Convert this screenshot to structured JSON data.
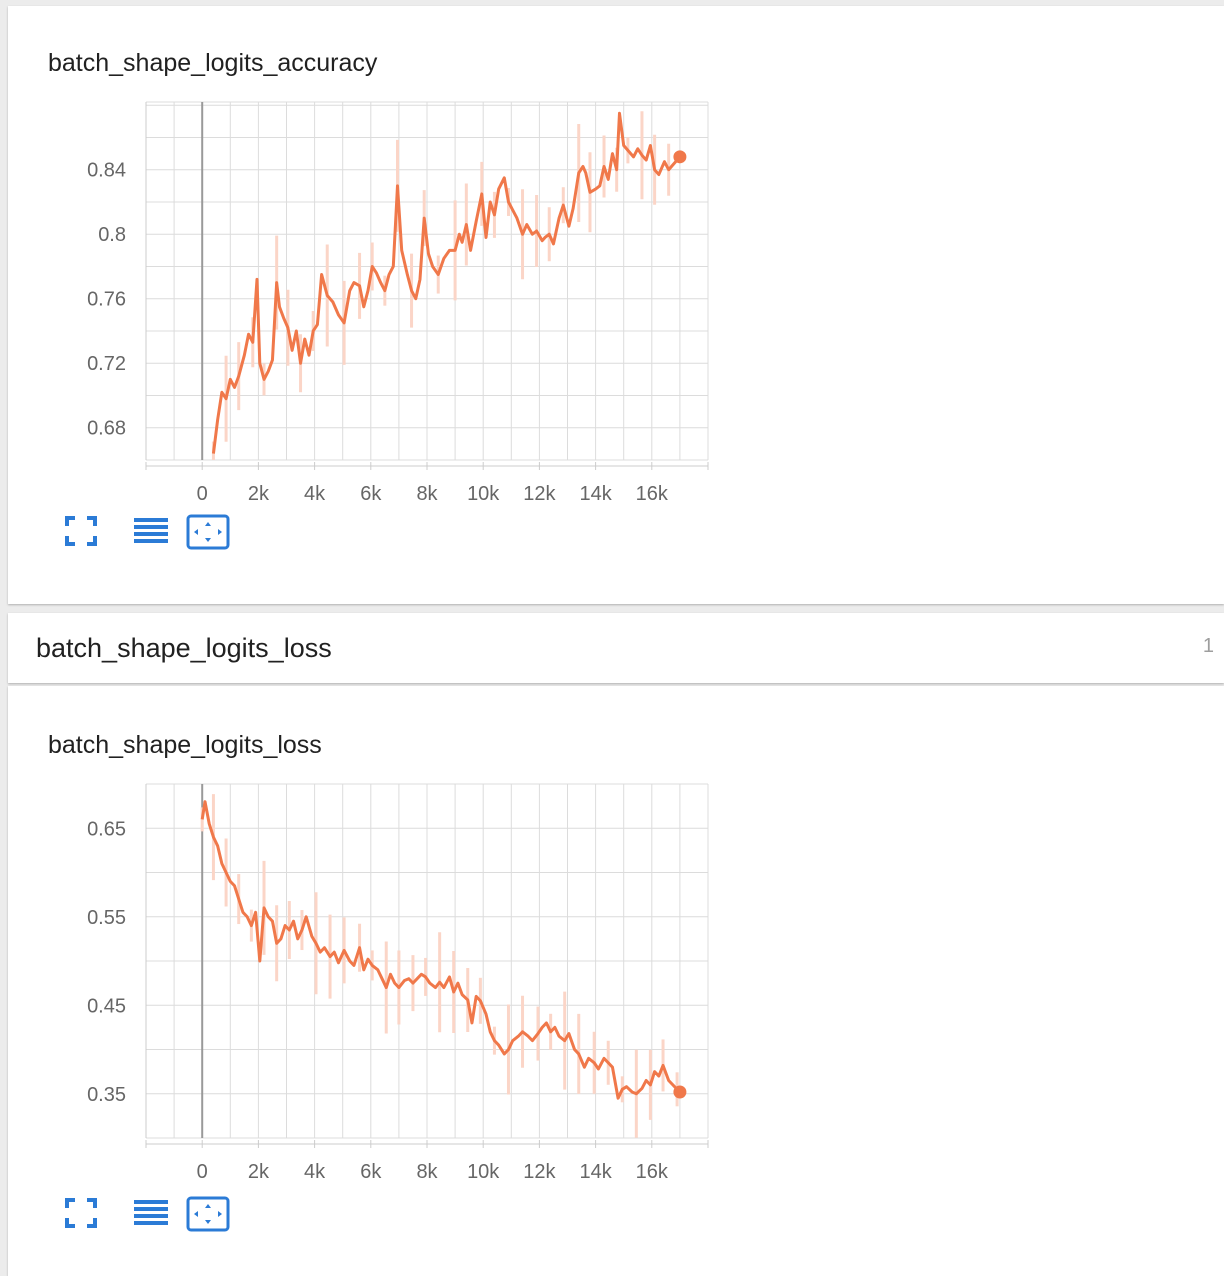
{
  "section": {
    "title": "batch_shape_logits_loss",
    "count": "1"
  },
  "charts": [
    {
      "id": "acc",
      "title": "batch_shape_logits_accuracy",
      "accent": "#f0784a",
      "raw_color": "#fbd5c7"
    },
    {
      "id": "loss",
      "title": "batch_shape_logits_loss",
      "accent": "#f0784a",
      "raw_color": "#fbd5c7"
    }
  ],
  "toolbar": [
    "fit-to-data-icon",
    "toggle-log-scale-icon",
    "expand-chart-icon"
  ],
  "chart_data": [
    {
      "type": "line",
      "title": "batch_shape_logits_accuracy",
      "xlabel": "",
      "ylabel": "",
      "xlim": [
        -2000,
        18000
      ],
      "ylim": [
        0.66,
        0.882
      ],
      "x_ticks": [
        0,
        2000,
        4000,
        6000,
        8000,
        10000,
        12000,
        14000,
        16000
      ],
      "x_tick_labels": [
        "0",
        "2k",
        "4k",
        "6k",
        "8k",
        "10k",
        "12k",
        "14k",
        "16k"
      ],
      "y_ticks": [
        0.68,
        0.72,
        0.76,
        0.8,
        0.84
      ],
      "y_tick_labels": [
        "0.68",
        "0.72",
        "0.76",
        "0.8",
        "0.84"
      ],
      "grid": true,
      "series": [
        {
          "x": [
            400,
            550,
            700,
            850,
            1000,
            1150,
            1300,
            1500,
            1650,
            1800,
            1950,
            2050,
            2200,
            2350,
            2500,
            2650,
            2750,
            2900,
            3050,
            3200,
            3350,
            3500,
            3650,
            3800,
            3950,
            4100,
            4250,
            4450,
            4650,
            4850,
            5050,
            5250,
            5400,
            5600,
            5750,
            5900,
            6050,
            6200,
            6350,
            6500,
            6650,
            6800,
            6950,
            7100,
            7300,
            7450,
            7600,
            7750,
            7900,
            8050,
            8200,
            8400,
            8600,
            8800,
            9000,
            9150,
            9250,
            9400,
            9550,
            9750,
            9950,
            10100,
            10250,
            10400,
            10550,
            10750,
            10900,
            11050,
            11200,
            11400,
            11550,
            11750,
            11900,
            12100,
            12200,
            12350,
            12500,
            12700,
            12850,
            13050,
            13200,
            13400,
            13550,
            13650,
            13800,
            14000,
            14150,
            14300,
            14450,
            14600,
            14750,
            14850,
            15000,
            15150,
            15350,
            15500,
            15650,
            15800,
            15950,
            16100,
            16250,
            16450,
            16600,
            16750,
            17000
          ],
          "y": [
            0.664,
            0.685,
            0.702,
            0.698,
            0.71,
            0.705,
            0.712,
            0.725,
            0.738,
            0.733,
            0.772,
            0.72,
            0.71,
            0.715,
            0.722,
            0.77,
            0.755,
            0.748,
            0.742,
            0.728,
            0.74,
            0.72,
            0.735,
            0.725,
            0.74,
            0.744,
            0.775,
            0.762,
            0.758,
            0.75,
            0.745,
            0.765,
            0.77,
            0.768,
            0.755,
            0.765,
            0.78,
            0.776,
            0.77,
            0.765,
            0.775,
            0.78,
            0.83,
            0.79,
            0.775,
            0.765,
            0.76,
            0.772,
            0.81,
            0.788,
            0.78,
            0.775,
            0.785,
            0.79,
            0.79,
            0.8,
            0.795,
            0.806,
            0.79,
            0.808,
            0.825,
            0.798,
            0.82,
            0.812,
            0.828,
            0.835,
            0.82,
            0.815,
            0.81,
            0.8,
            0.806,
            0.8,
            0.802,
            0.796,
            0.798,
            0.8,
            0.794,
            0.81,
            0.818,
            0.805,
            0.816,
            0.838,
            0.842,
            0.838,
            0.826,
            0.828,
            0.83,
            0.842,
            0.834,
            0.85,
            0.84,
            0.875,
            0.855,
            0.852,
            0.848,
            0.853,
            0.849,
            0.846,
            0.855,
            0.84,
            0.837,
            0.845,
            0.84,
            0.843,
            0.848
          ]
        }
      ]
    },
    {
      "type": "line",
      "title": "batch_shape_logits_loss",
      "xlabel": "",
      "ylabel": "",
      "xlim": [
        -2000,
        18000
      ],
      "ylim": [
        0.3,
        0.7
      ],
      "x_ticks": [
        0,
        2000,
        4000,
        6000,
        8000,
        10000,
        12000,
        14000,
        16000
      ],
      "x_tick_labels": [
        "0",
        "2k",
        "4k",
        "6k",
        "8k",
        "10k",
        "12k",
        "14k",
        "16k"
      ],
      "y_ticks": [
        0.35,
        0.45,
        0.55,
        0.65
      ],
      "y_tick_labels": [
        "0.35",
        "0.45",
        "0.55",
        "0.65"
      ],
      "grid": true,
      "series": [
        {
          "x": [
            0,
            100,
            250,
            400,
            550,
            700,
            850,
            1000,
            1150,
            1300,
            1450,
            1600,
            1750,
            1900,
            2050,
            2200,
            2350,
            2500,
            2650,
            2800,
            2950,
            3100,
            3250,
            3400,
            3550,
            3700,
            3900,
            4050,
            4200,
            4350,
            4550,
            4700,
            4850,
            5050,
            5250,
            5400,
            5600,
            5750,
            5900,
            6050,
            6250,
            6400,
            6550,
            6700,
            6850,
            7000,
            7200,
            7350,
            7500,
            7650,
            7800,
            7950,
            8100,
            8300,
            8450,
            8600,
            8800,
            8950,
            9100,
            9250,
            9450,
            9600,
            9750,
            9900,
            10100,
            10250,
            10400,
            10550,
            10750,
            10900,
            11050,
            11250,
            11400,
            11600,
            11750,
            11950,
            12100,
            12250,
            12400,
            12550,
            12700,
            12900,
            13050,
            13250,
            13400,
            13600,
            13750,
            13950,
            14100,
            14300,
            14450,
            14600,
            14800,
            14950,
            15100,
            15300,
            15450,
            15650,
            15800,
            15950,
            16100,
            16250,
            16400,
            16600,
            16750,
            16900,
            17000
          ],
          "y": [
            0.66,
            0.68,
            0.655,
            0.64,
            0.63,
            0.61,
            0.6,
            0.59,
            0.585,
            0.57,
            0.555,
            0.55,
            0.54,
            0.555,
            0.5,
            0.56,
            0.55,
            0.545,
            0.52,
            0.525,
            0.54,
            0.535,
            0.545,
            0.525,
            0.535,
            0.55,
            0.528,
            0.52,
            0.51,
            0.515,
            0.505,
            0.51,
            0.498,
            0.512,
            0.5,
            0.495,
            0.515,
            0.49,
            0.502,
            0.495,
            0.49,
            0.48,
            0.47,
            0.485,
            0.475,
            0.47,
            0.478,
            0.48,
            0.475,
            0.48,
            0.485,
            0.482,
            0.475,
            0.47,
            0.476,
            0.47,
            0.482,
            0.465,
            0.475,
            0.462,
            0.456,
            0.43,
            0.46,
            0.455,
            0.44,
            0.42,
            0.41,
            0.405,
            0.395,
            0.4,
            0.41,
            0.415,
            0.42,
            0.415,
            0.41,
            0.418,
            0.425,
            0.43,
            0.42,
            0.425,
            0.415,
            0.41,
            0.418,
            0.4,
            0.395,
            0.38,
            0.39,
            0.385,
            0.378,
            0.39,
            0.385,
            0.38,
            0.345,
            0.355,
            0.358,
            0.352,
            0.35,
            0.356,
            0.365,
            0.36,
            0.375,
            0.37,
            0.382,
            0.365,
            0.36,
            0.355,
            0.352
          ]
        }
      ]
    }
  ]
}
